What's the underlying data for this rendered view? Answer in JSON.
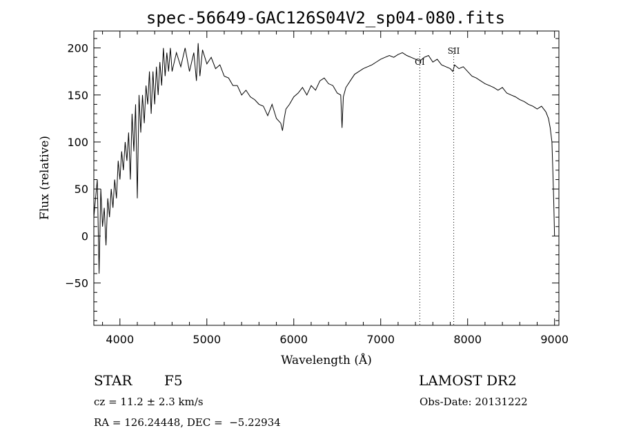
{
  "chart_data": {
    "type": "line",
    "title": "spec-56649-GAC126S04V2_sp04-080.fits",
    "xlabel": "Wavelength (Å)",
    "ylabel": "Flux (relative)",
    "xlim": [
      3700,
      9050
    ],
    "ylim": [
      -95,
      218
    ],
    "xticks": [
      4000,
      5000,
      6000,
      7000,
      8000,
      9000
    ],
    "xtick_labels": [
      "4000",
      "5000",
      "6000",
      "7000",
      "8000",
      "9000"
    ],
    "yticks": [
      -50,
      0,
      50,
      100,
      150,
      200
    ],
    "ytick_labels": [
      "−50",
      "0",
      "50",
      "100",
      "150",
      "200"
    ],
    "grid": false,
    "series": [
      {
        "x": [
          3700,
          3720,
          3740,
          3760,
          3780,
          3800,
          3820,
          3840,
          3860,
          3880,
          3900,
          3920,
          3940,
          3960,
          3980,
          4000,
          4020,
          4040,
          4060,
          4080,
          4100,
          4120,
          4140,
          4160,
          4180,
          4200,
          4220,
          4240,
          4260,
          4280,
          4300,
          4320,
          4340,
          4360,
          4380,
          4400,
          4420,
          4440,
          4460,
          4480,
          4500,
          4520,
          4540,
          4560,
          4580,
          4600,
          4650,
          4700,
          4750,
          4800,
          4850,
          4880,
          4900,
          4920,
          4950,
          5000,
          5050,
          5100,
          5150,
          5200,
          5250,
          5300,
          5350,
          5400,
          5450,
          5500,
          5550,
          5600,
          5650,
          5700,
          5750,
          5800,
          5850,
          5870,
          5890,
          5910,
          5950,
          6000,
          6050,
          6100,
          6150,
          6200,
          6250,
          6300,
          6350,
          6400,
          6450,
          6500,
          6540,
          6555,
          6570,
          6600,
          6650,
          6700,
          6750,
          6800,
          6850,
          6900,
          6950,
          7000,
          7050,
          7100,
          7150,
          7200,
          7250,
          7300,
          7350,
          7400,
          7450,
          7500,
          7550,
          7600,
          7650,
          7700,
          7750,
          7800,
          7830,
          7850,
          7900,
          7950,
          8000,
          8050,
          8100,
          8150,
          8200,
          8250,
          8300,
          8350,
          8400,
          8450,
          8500,
          8550,
          8600,
          8650,
          8700,
          8750,
          8800,
          8850,
          8900,
          8930,
          8950,
          8970,
          8980,
          8990,
          9000
        ],
        "y": [
          20,
          40,
          60,
          -40,
          50,
          10,
          30,
          -10,
          40,
          20,
          50,
          30,
          60,
          40,
          80,
          60,
          90,
          70,
          100,
          80,
          110,
          60,
          130,
          90,
          140,
          40,
          150,
          110,
          150,
          120,
          160,
          140,
          175,
          130,
          175,
          140,
          180,
          150,
          185,
          160,
          200,
          170,
          195,
          175,
          200,
          175,
          195,
          180,
          200,
          175,
          195,
          165,
          205,
          170,
          198,
          183,
          190,
          178,
          182,
          170,
          168,
          160,
          160,
          150,
          155,
          148,
          145,
          140,
          138,
          128,
          140,
          125,
          120,
          112,
          125,
          135,
          140,
          148,
          152,
          158,
          150,
          160,
          155,
          165,
          168,
          162,
          160,
          152,
          150,
          115,
          148,
          158,
          165,
          172,
          175,
          178,
          180,
          182,
          185,
          188,
          190,
          192,
          190,
          193,
          195,
          192,
          190,
          188,
          186,
          190,
          192,
          185,
          188,
          182,
          180,
          178,
          175,
          182,
          178,
          180,
          175,
          170,
          168,
          165,
          162,
          160,
          158,
          155,
          158,
          152,
          150,
          148,
          145,
          143,
          140,
          138,
          135,
          138,
          132,
          125,
          115,
          100,
          70,
          40,
          0
        ]
      }
    ],
    "marker_lines": [
      {
        "x": 7450,
        "label": "OI"
      },
      {
        "x": 7840,
        "label": "SII"
      }
    ]
  },
  "info": {
    "object_class": "STAR",
    "subclass": "F5",
    "survey": "LAMOST DR2",
    "cz": "cz = 11.2 ± 2.3 km/s",
    "obs_date": "Obs-Date: 20131222",
    "coords": "RA = 126.24448, DEC =  −5.22934"
  }
}
